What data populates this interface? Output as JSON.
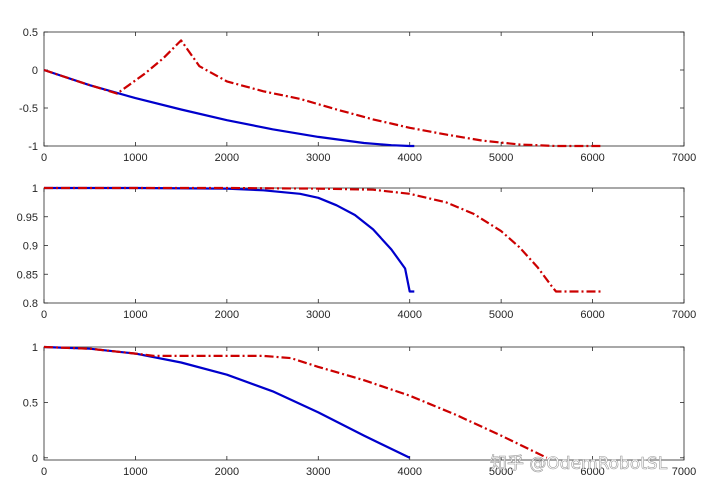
{
  "chart_data": [
    {
      "type": "line",
      "title": "",
      "xlabel": "",
      "ylabel": "",
      "xlim": [
        0,
        7000
      ],
      "ylim": [
        -1,
        0.5
      ],
      "xticks": [
        0,
        1000,
        2000,
        3000,
        4000,
        5000,
        6000,
        7000
      ],
      "yticks": [
        -1,
        -0.5,
        0,
        0.5
      ],
      "grid": false,
      "series": [
        {
          "color": "#0000cc",
          "style": "solid",
          "x": [
            0,
            500,
            1000,
            1500,
            2000,
            2500,
            3000,
            3500,
            3800,
            4000,
            4050
          ],
          "y": [
            0,
            -0.2,
            -0.37,
            -0.52,
            -0.66,
            -0.78,
            -0.88,
            -0.96,
            -0.99,
            -1.0,
            -1.0
          ]
        },
        {
          "color": "#cc0000",
          "style": "dashdot",
          "x": [
            0,
            400,
            800,
            1100,
            1300,
            1500,
            1700,
            2000,
            2400,
            2800,
            3200,
            3600,
            4000,
            4400,
            4800,
            5200,
            5600,
            6000,
            6100
          ],
          "y": [
            0,
            -0.16,
            -0.31,
            -0.05,
            0.15,
            0.39,
            0.05,
            -0.15,
            -0.28,
            -0.38,
            -0.52,
            -0.65,
            -0.76,
            -0.85,
            -0.93,
            -0.98,
            -1.0,
            -1.0,
            -1.0
          ]
        }
      ]
    },
    {
      "type": "line",
      "title": "",
      "xlabel": "",
      "ylabel": "",
      "xlim": [
        0,
        7000
      ],
      "ylim": [
        0.8,
        1
      ],
      "xticks": [
        0,
        1000,
        2000,
        3000,
        4000,
        5000,
        6000,
        7000
      ],
      "yticks": [
        0.8,
        0.85,
        0.9,
        0.95,
        1
      ],
      "grid": false,
      "series": [
        {
          "color": "#0000cc",
          "style": "solid",
          "x": [
            0,
            1000,
            2000,
            2400,
            2800,
            3000,
            3200,
            3400,
            3600,
            3800,
            3950,
            4000,
            4050
          ],
          "y": [
            1,
            1,
            0.999,
            0.996,
            0.99,
            0.983,
            0.97,
            0.953,
            0.928,
            0.893,
            0.86,
            0.82,
            0.82
          ]
        },
        {
          "color": "#cc0000",
          "style": "dashdot",
          "x": [
            0,
            2000,
            3000,
            3600,
            4000,
            4400,
            4700,
            5000,
            5200,
            5400,
            5550,
            5600,
            5800,
            6100
          ],
          "y": [
            1,
            1,
            0.999,
            0.997,
            0.99,
            0.975,
            0.955,
            0.925,
            0.897,
            0.862,
            0.83,
            0.82,
            0.82,
            0.82
          ]
        }
      ]
    },
    {
      "type": "line",
      "title": "",
      "xlabel": "",
      "ylabel": "",
      "xlim": [
        0,
        7000
      ],
      "ylim": [
        -0.02,
        1
      ],
      "xticks": [
        0,
        1000,
        2000,
        3000,
        4000,
        5000,
        6000,
        7000
      ],
      "yticks": [
        0,
        0.5,
        1
      ],
      "grid": false,
      "series": [
        {
          "color": "#0000cc",
          "style": "solid",
          "x": [
            0,
            500,
            1000,
            1500,
            2000,
            2500,
            3000,
            3500,
            4000
          ],
          "y": [
            1,
            0.985,
            0.94,
            0.86,
            0.75,
            0.6,
            0.41,
            0.2,
            0
          ]
        },
        {
          "color": "#cc0000",
          "style": "dashdot",
          "x": [
            0,
            500,
            1000,
            1200,
            1600,
            2000,
            2400,
            2700,
            3000,
            3500,
            4000,
            4500,
            5000,
            5500
          ],
          "y": [
            1,
            0.985,
            0.94,
            0.92,
            0.92,
            0.92,
            0.92,
            0.9,
            0.82,
            0.7,
            0.56,
            0.39,
            0.2,
            0
          ]
        }
      ]
    }
  ],
  "watermark": {
    "text": "知乎 @OdemRobotSL"
  }
}
